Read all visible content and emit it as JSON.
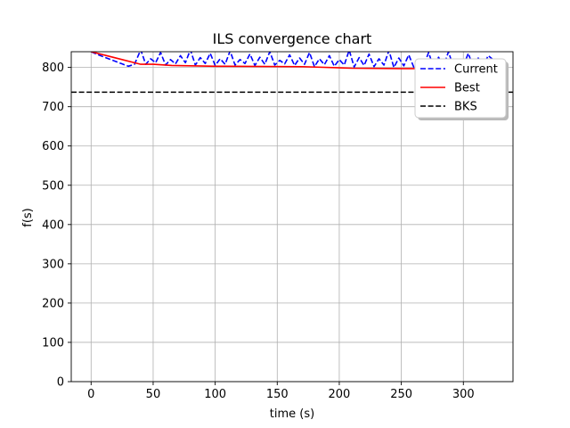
{
  "chart_data": {
    "type": "line",
    "title": "ILS convergence chart",
    "xlabel": "time (s)",
    "ylabel": "f(s)",
    "xlim": [
      -16,
      340
    ],
    "ylim": [
      0,
      840
    ],
    "xticks": [
      0,
      50,
      100,
      150,
      200,
      250,
      300
    ],
    "yticks": [
      0,
      100,
      200,
      300,
      400,
      500,
      600,
      700,
      800
    ],
    "grid": true,
    "legend_position": "top-right",
    "series": [
      {
        "name": "Current",
        "color": "#0000ff",
        "style": "dashed",
        "x": [
          0,
          5,
          10,
          15,
          20,
          25,
          30,
          35,
          40,
          44,
          48,
          52,
          56,
          60,
          64,
          68,
          72,
          76,
          80,
          84,
          88,
          92,
          96,
          100,
          104,
          108,
          112,
          116,
          120,
          124,
          128,
          132,
          136,
          140,
          144,
          148,
          152,
          156,
          160,
          164,
          168,
          172,
          176,
          180,
          184,
          188,
          192,
          196,
          200,
          204,
          208,
          212,
          216,
          220,
          224,
          228,
          232,
          236,
          240,
          244,
          248,
          252,
          256,
          260,
          264,
          268,
          272,
          276,
          280,
          284,
          288,
          292,
          296,
          300,
          304,
          308,
          312,
          316,
          320,
          324
        ],
        "y": [
          840,
          833,
          827,
          821,
          815,
          809,
          803,
          808,
          845,
          808,
          822,
          812,
          838,
          806,
          820,
          809,
          830,
          812,
          845,
          806,
          825,
          810,
          836,
          805,
          822,
          808,
          842,
          806,
          820,
          810,
          834,
          805,
          826,
          808,
          840,
          806,
          818,
          809,
          832,
          805,
          824,
          808,
          838,
          802,
          822,
          807,
          830,
          803,
          820,
          806,
          844,
          801,
          825,
          805,
          834,
          802,
          822,
          806,
          843,
          800,
          824,
          804,
          832,
          801,
          820,
          805,
          838,
          800,
          826,
          803,
          840,
          801,
          822,
          804,
          836,
          800,
          824,
          803,
          830,
          820
        ]
      },
      {
        "name": "Best",
        "color": "#ff0000",
        "style": "solid",
        "x": [
          0,
          40,
          50,
          65,
          100,
          170,
          210,
          250,
          262
        ],
        "y": [
          840,
          808,
          808,
          805,
          803,
          802,
          798,
          797,
          797
        ]
      },
      {
        "name": "BKS",
        "color": "#000000",
        "style": "dashed",
        "x": [
          -16,
          340
        ],
        "y": [
          737,
          737
        ]
      }
    ]
  }
}
